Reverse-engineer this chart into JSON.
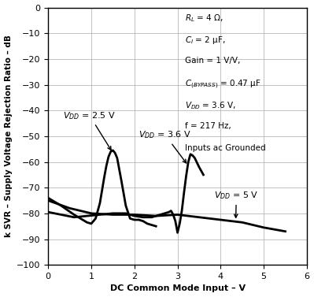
{
  "xlabel": "DC Common Mode Input – V",
  "ylabel": "k SVR – Supply Voltage Rejection Ratio – dB",
  "xlim": [
    0,
    6
  ],
  "ylim": [
    -100,
    0
  ],
  "xticks": [
    0,
    1,
    2,
    3,
    4,
    5,
    6
  ],
  "yticks": [
    0,
    -10,
    -20,
    -30,
    -40,
    -50,
    -60,
    -70,
    -80,
    -90,
    -100
  ],
  "line_color": "#000000",
  "bg_color": "#ffffff",
  "grid_color": "#aaaaaa",
  "curve_vdd25_x": [
    0.0,
    0.3,
    0.6,
    0.9,
    1.0,
    1.1,
    1.2,
    1.3,
    1.35,
    1.4,
    1.45,
    1.5,
    1.55,
    1.6,
    1.7,
    1.8,
    1.9,
    2.0,
    2.1,
    2.2,
    2.3,
    2.4,
    2.5
  ],
  "curve_vdd25_y": [
    -74.0,
    -77.0,
    -80.5,
    -83.5,
    -84.0,
    -82.0,
    -76.0,
    -66.0,
    -61.5,
    -58.0,
    -56.0,
    -55.5,
    -56.5,
    -58.5,
    -67.5,
    -77.0,
    -82.0,
    -82.5,
    -82.5,
    -83.0,
    -84.0,
    -84.5,
    -85.0
  ],
  "curve_vdd36_x": [
    0.0,
    0.3,
    0.6,
    0.9,
    1.2,
    1.5,
    1.8,
    2.0,
    2.2,
    2.4,
    2.5,
    2.6,
    2.7,
    2.8,
    2.85,
    2.9,
    2.95,
    3.0,
    3.05,
    3.1,
    3.15,
    3.2,
    3.25,
    3.3,
    3.35,
    3.4,
    3.5,
    3.6
  ],
  "curve_vdd36_y": [
    -79.5,
    -80.5,
    -81.5,
    -81.0,
    -80.5,
    -80.0,
    -80.0,
    -81.0,
    -81.5,
    -81.5,
    -81.0,
    -80.5,
    -80.0,
    -79.5,
    -79.0,
    -80.5,
    -83.0,
    -87.5,
    -84.0,
    -79.0,
    -72.0,
    -65.5,
    -60.0,
    -57.0,
    -57.5,
    -58.5,
    -62.0,
    -65.0
  ],
  "curve_vdd5_x": [
    0.0,
    0.5,
    1.0,
    1.5,
    2.0,
    2.5,
    3.0,
    3.5,
    4.0,
    4.5,
    5.0,
    5.5
  ],
  "curve_vdd5_y": [
    -75.0,
    -78.0,
    -80.0,
    -80.5,
    -80.5,
    -81.0,
    -80.5,
    -81.5,
    -82.5,
    -83.5,
    -85.5,
    -87.0
  ],
  "ann_x": 3.2,
  "ann_y": -1.5,
  "ann_lines": [
    "R_L = 4 Ω,",
    "C_I = 2 μF,",
    "Gain = 1 V/V,",
    "C_(BYPASS) = 0.47 μF",
    "V_DD = 3.6 V,",
    "f = 217 Hz,",
    "Inputs ac Grounded"
  ]
}
